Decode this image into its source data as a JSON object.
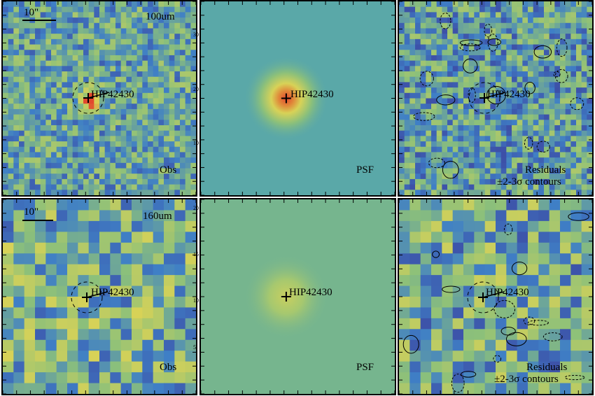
{
  "figure": {
    "rows": [
      {
        "band": "100um",
        "scale_label": "10\"",
        "obs_label": "Obs",
        "psf_label": "PSF",
        "residual_label_1": "Residuals",
        "residual_label_2": "±2-3σ contours",
        "source_label": "HIP42430",
        "psf_axis_ticks": [
          "30",
          "20",
          "10"
        ]
      },
      {
        "band": "160um",
        "scale_label": "10\"",
        "obs_label": "Obs",
        "psf_label": "PSF",
        "residual_label_1": "Residuals",
        "residual_label_2": "±2-3σ contours",
        "source_label": "HIP42430",
        "psf_axis_ticks": [
          "20",
          "15",
          "10",
          "5"
        ]
      }
    ],
    "colors": {
      "low": "#3b2b8f",
      "mid_low": "#3f7fc6",
      "mid": "#8cc07a",
      "mid_high": "#d8d257",
      "high": "#e2482e",
      "psf_bg_top": "#5aa8a8",
      "psf_bg_bottom": "#76b58e"
    }
  }
}
